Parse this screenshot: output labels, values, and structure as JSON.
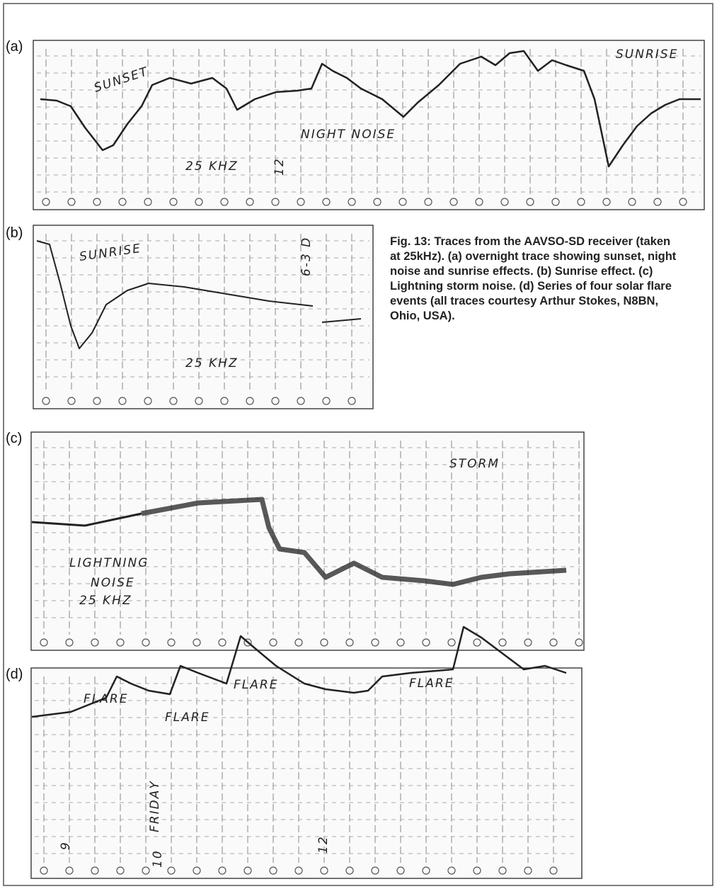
{
  "panels": [
    {
      "label": "(a)",
      "annotations": [
        "SUNSET",
        "SUNRISE",
        "NIGHT NOISE",
        "25 KHZ",
        "12"
      ]
    },
    {
      "label": "(b)",
      "annotations": [
        "SUNRISE",
        "25 KHZ",
        "6-3 D"
      ]
    },
    {
      "label": "(c)",
      "annotations": [
        "STORM",
        "LIGHTNING",
        "NOISE",
        "25 KHZ"
      ]
    },
    {
      "label": "(d)",
      "annotations": [
        "FLARE",
        "FLARE",
        "FLARE",
        "FLARE",
        "FRIDAY",
        "9",
        "10",
        "12"
      ]
    }
  ],
  "caption": "Fig. 13: Traces from the AAVSO-SD receiver (taken at 25kHz). (a) overnight trace showing sunset, night noise and sunrise effects. (b) Sunrise effect. (c) Lightning storm noise. (d) Series of four solar flare events (all traces courtesy Arthur Stokes, N8BN, Ohio, USA)."
}
